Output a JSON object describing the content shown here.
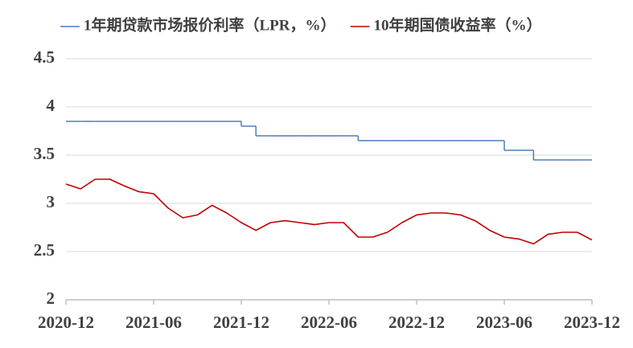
{
  "chart_data": {
    "type": "line",
    "x": [
      "2020-12",
      null,
      null,
      null,
      null,
      null,
      "2021-06",
      null,
      null,
      null,
      null,
      null,
      "2021-12",
      null,
      null,
      null,
      null,
      null,
      "2022-06",
      null,
      null,
      null,
      null,
      null,
      "2022-12",
      null,
      null,
      null,
      null,
      null,
      "2023-06",
      null,
      null,
      null,
      null,
      null,
      "2023-12"
    ],
    "series": [
      {
        "name": "1年期贷款市场报价利率（LPR，%）",
        "color": "#4a7ebb",
        "step": true,
        "values": [
          3.85,
          3.85,
          3.85,
          3.85,
          3.85,
          3.85,
          3.85,
          3.85,
          3.85,
          3.85,
          3.85,
          3.85,
          3.8,
          3.7,
          3.7,
          3.7,
          3.7,
          3.7,
          3.7,
          3.7,
          3.65,
          3.65,
          3.65,
          3.65,
          3.65,
          3.65,
          3.65,
          3.65,
          3.65,
          3.65,
          3.55,
          3.55,
          3.45,
          3.45,
          3.45,
          3.45,
          3.45
        ]
      },
      {
        "name": "10年期国债收益率（%）",
        "color": "#c00000",
        "step": false,
        "values": [
          3.2,
          3.15,
          3.25,
          3.25,
          3.18,
          3.12,
          3.1,
          2.95,
          2.85,
          2.88,
          2.98,
          2.9,
          2.8,
          2.72,
          2.8,
          2.82,
          2.8,
          2.78,
          2.8,
          2.8,
          2.65,
          2.65,
          2.7,
          2.8,
          2.88,
          2.9,
          2.9,
          2.88,
          2.82,
          2.72,
          2.65,
          2.63,
          2.58,
          2.68,
          2.7,
          2.7,
          2.62
        ]
      }
    ],
    "ylim": [
      2,
      4.5
    ],
    "yticks": [
      2,
      2.5,
      3,
      3.5,
      4,
      4.5
    ],
    "grid": true
  }
}
